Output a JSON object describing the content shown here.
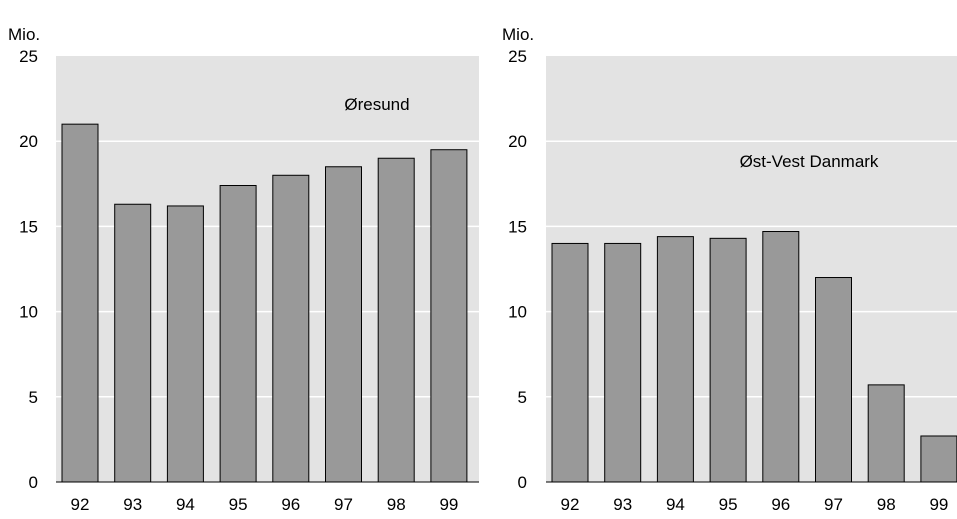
{
  "chart_data": [
    {
      "type": "bar",
      "title": "Øresund",
      "ylabel": "Mio.",
      "categories": [
        "92",
        "93",
        "94",
        "95",
        "96",
        "97",
        "98",
        "99"
      ],
      "values": [
        21.0,
        16.3,
        16.2,
        17.4,
        18.0,
        18.5,
        19.0,
        19.5
      ],
      "ylim": [
        0,
        25
      ],
      "yticks": [
        "0",
        "5",
        "10",
        "15",
        "20",
        "25"
      ],
      "grid": true,
      "colors": {
        "plot_bg": "#e3e3e3",
        "bar": "#999999",
        "gridline": "#ffffff"
      }
    },
    {
      "type": "bar",
      "title": "Øst-Vest Danmark",
      "ylabel": "Mio.",
      "categories": [
        "92",
        "93",
        "94",
        "95",
        "96",
        "97",
        "98",
        "99"
      ],
      "values": [
        14.0,
        14.0,
        14.4,
        14.3,
        14.7,
        12.0,
        5.7,
        2.7
      ],
      "ylim": [
        0,
        25
      ],
      "yticks": [
        "0",
        "5",
        "10",
        "15",
        "20",
        "25"
      ],
      "grid": true,
      "colors": {
        "plot_bg": "#e3e3e3",
        "bar": "#999999",
        "gridline": "#ffffff"
      }
    }
  ]
}
